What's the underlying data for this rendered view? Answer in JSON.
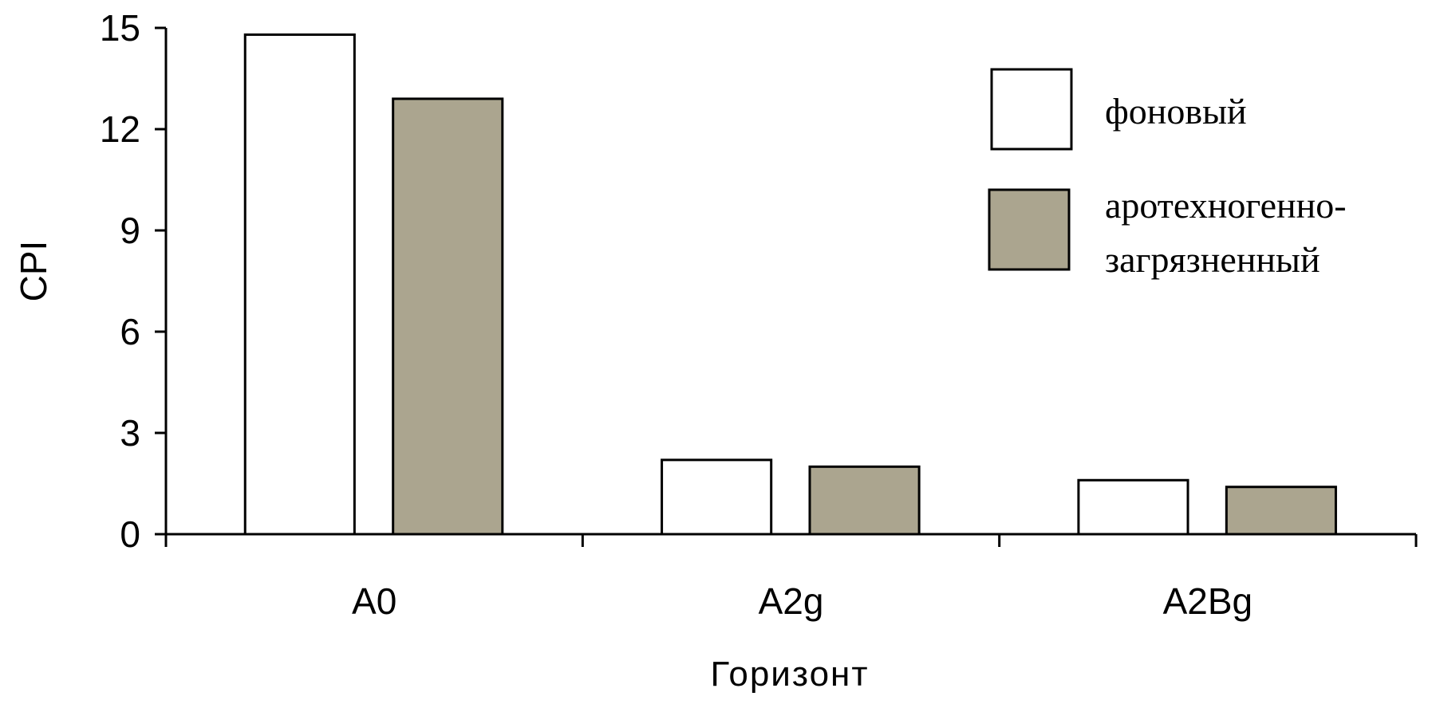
{
  "chart_data": {
    "type": "bar",
    "categories": [
      "A0",
      "A2g",
      "A2Bg"
    ],
    "series": [
      {
        "name": "фоновый",
        "values": [
          14.8,
          2.2,
          1.6
        ],
        "color": "#ffffff"
      },
      {
        "name": "аротехногенно-загрязненный",
        "values": [
          12.9,
          2.0,
          1.4
        ],
        "color": "#aba58f",
        "legend_lines": [
          "аротехногенно-",
          "загрязненный"
        ]
      }
    ],
    "title": "",
    "xlabel": "Горизонт",
    "ylabel": "CPI",
    "ylim": [
      0,
      15
    ],
    "yticks": [
      "0",
      "3",
      "6",
      "9",
      "12",
      "15"
    ],
    "grid": false,
    "legend_position": "top-right"
  }
}
